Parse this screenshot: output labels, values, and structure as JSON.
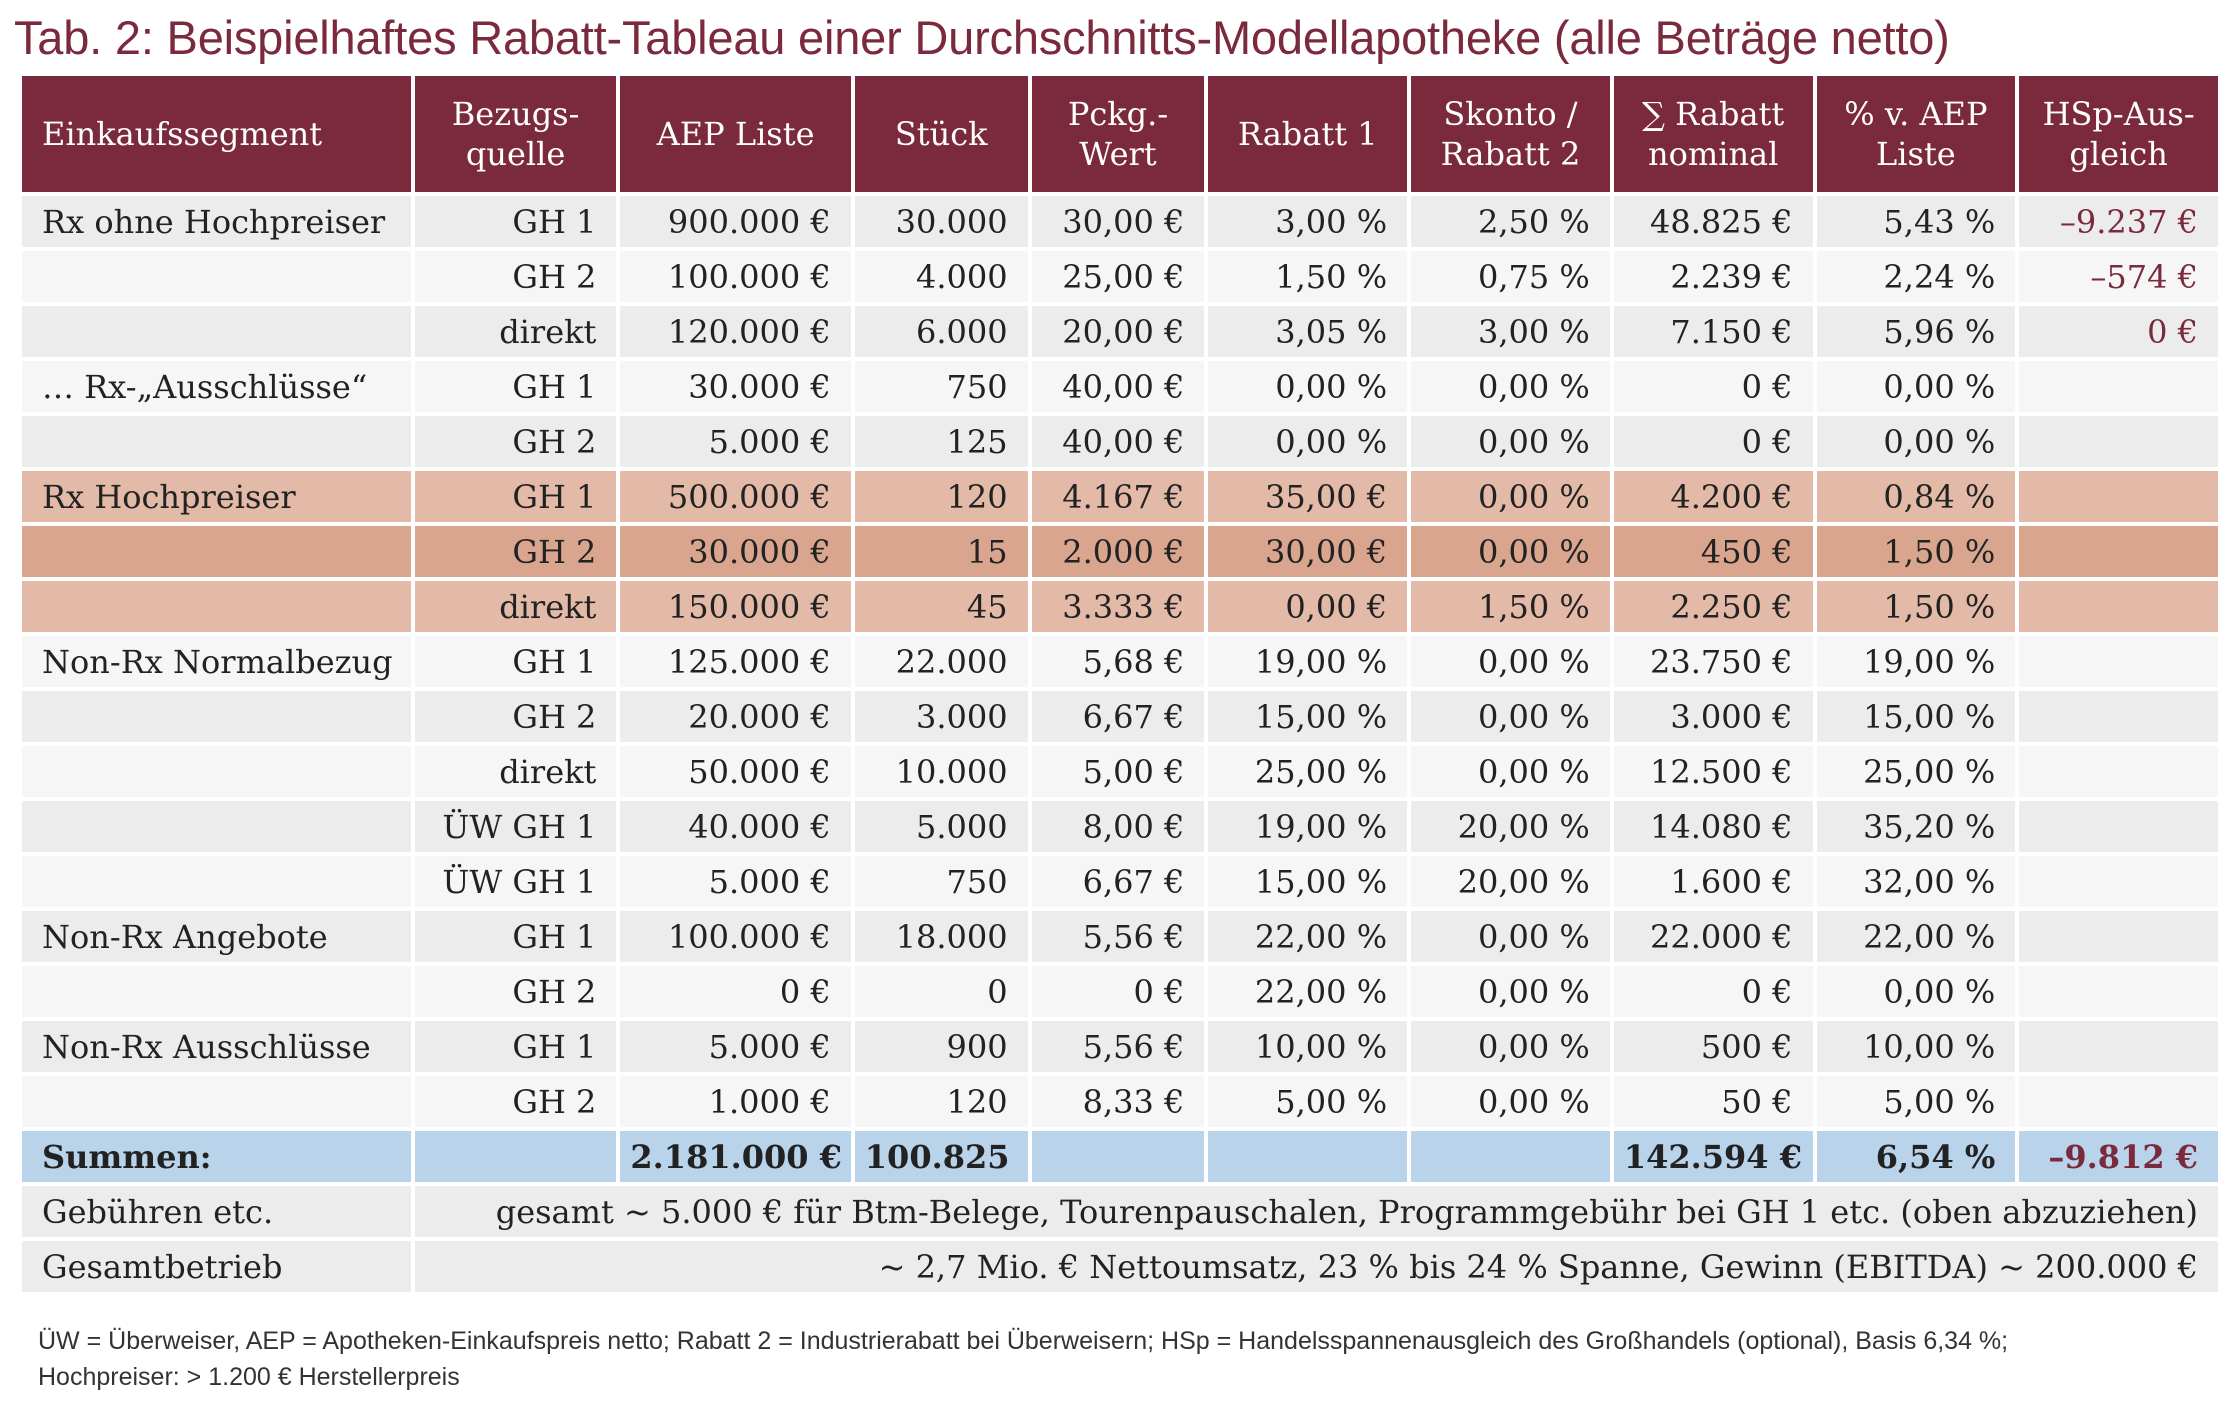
{
  "title": "Tab. 2: Beispielhaftes Rabatt-Tableau einer Durchschnitts-Modellapotheke (alle Beträge netto)",
  "columns": [
    [
      "Einkaufssegment"
    ],
    [
      "Bezugs-",
      "quelle"
    ],
    [
      "AEP Liste"
    ],
    [
      "Stück"
    ],
    [
      "Pckg.-",
      "Wert"
    ],
    [
      "Rabatt 1"
    ],
    [
      "Skonto /",
      "Rabatt 2"
    ],
    [
      "∑ Rabatt",
      "nominal"
    ],
    [
      "% v. AEP",
      "Liste"
    ],
    [
      "HSp-Aus-",
      "gleich"
    ]
  ],
  "rows": [
    {
      "style": "c1",
      "cells": [
        "Rx ohne Hochpreiser",
        "GH 1",
        "900.000 €",
        "30.000",
        "30,00 €",
        "3,00 %",
        "2,50 %",
        "48.825 €",
        "5,43 %",
        "–9.237 €"
      ]
    },
    {
      "style": "c2",
      "cells": [
        "",
        "GH 2",
        "100.000 €",
        "4.000",
        "25,00 €",
        "1,50 %",
        "0,75 %",
        "2.239 €",
        "2,24 %",
        "–574 €"
      ]
    },
    {
      "style": "c1",
      "cells": [
        "",
        "direkt",
        "120.000 €",
        "6.000",
        "20,00 €",
        "3,05 %",
        "3,00 %",
        "7.150 €",
        "5,96 %",
        "0 €"
      ]
    },
    {
      "style": "c2",
      "cells": [
        "… Rx-„Ausschlüsse“",
        "GH 1",
        "30.000 €",
        "750",
        "40,00 €",
        "0,00 %",
        "0,00 %",
        "0 €",
        "0,00 %",
        ""
      ]
    },
    {
      "style": "c1",
      "cells": [
        "",
        "GH 2",
        "5.000 €",
        "125",
        "40,00 €",
        "0,00 %",
        "0,00 %",
        "0 €",
        "0,00 %",
        ""
      ]
    },
    {
      "style": "h1",
      "cells": [
        "Rx Hochpreiser",
        "GH 1",
        "500.000 €",
        "120",
        "4.167 €",
        "35,00 €",
        "0,00 %",
        "4.200 €",
        "0,84 %",
        ""
      ]
    },
    {
      "style": "h2",
      "cells": [
        "",
        "GH 2",
        "30.000 €",
        "15",
        "2.000 €",
        "30,00 €",
        "0,00 %",
        "450 €",
        "1,50 %",
        ""
      ]
    },
    {
      "style": "h1",
      "cells": [
        "",
        "direkt",
        "150.000 €",
        "45",
        "3.333 €",
        "0,00 €",
        "1,50 %",
        "2.250 €",
        "1,50 %",
        ""
      ]
    },
    {
      "style": "c2",
      "cells": [
        "Non-Rx Normalbezug",
        "GH 1",
        "125.000 €",
        "22.000",
        "5,68 €",
        "19,00 %",
        "0,00 %",
        "23.750 €",
        "19,00 %",
        ""
      ]
    },
    {
      "style": "c1",
      "cells": [
        "",
        "GH 2",
        "20.000 €",
        "3.000",
        "6,67 €",
        "15,00 %",
        "0,00 %",
        "3.000 €",
        "15,00 %",
        ""
      ]
    },
    {
      "style": "c2",
      "cells": [
        "",
        "direkt",
        "50.000 €",
        "10.000",
        "5,00 €",
        "25,00 %",
        "0,00 %",
        "12.500 €",
        "25,00 %",
        ""
      ]
    },
    {
      "style": "c1",
      "cells": [
        "",
        "ÜW GH 1",
        "40.000 €",
        "5.000",
        "8,00 €",
        "19,00 %",
        "20,00 %",
        "14.080 €",
        "35,20 %",
        ""
      ]
    },
    {
      "style": "c2",
      "cells": [
        "",
        "ÜW GH 1",
        "5.000 €",
        "750",
        "6,67 €",
        "15,00 %",
        "20,00 %",
        "1.600 €",
        "32,00 %",
        ""
      ]
    },
    {
      "style": "c1",
      "cells": [
        "Non-Rx Angebote",
        "GH 1",
        "100.000 €",
        "18.000",
        "5,56 €",
        "22,00 %",
        "0,00 %",
        "22.000 €",
        "22,00 %",
        ""
      ]
    },
    {
      "style": "c2",
      "cells": [
        "",
        "GH 2",
        "0 €",
        "0",
        "0 €",
        "22,00 %",
        "0,00 %",
        "0 €",
        "0,00 %",
        ""
      ]
    },
    {
      "style": "c1",
      "cells": [
        "Non-Rx Ausschlüsse",
        "GH 1",
        "5.000 €",
        "900",
        "5,56 €",
        "10,00 %",
        "0,00 %",
        "500 €",
        "10,00 %",
        ""
      ]
    },
    {
      "style": "c2",
      "cells": [
        "",
        "GH 2",
        "1.000 €",
        "120",
        "8,33 €",
        "5,00 %",
        "0,00 %",
        "50 €",
        "5,00 %",
        ""
      ]
    }
  ],
  "negative_cells": [
    "–9.237 €",
    "–574 €",
    "0 €",
    "–9.812 €"
  ],
  "sum_row": [
    "Summen:",
    "",
    "2.181.000 €",
    "100.825",
    "",
    "",
    "",
    "142.594 €",
    "6,54 %",
    "–9.812 €"
  ],
  "info_rows": [
    {
      "label": "Gebühren etc.",
      "text": "gesamt ~ 5.000 € für Btm-Belege, Tourenpauschalen, Programmgebühr bei GH 1 etc. (oben abzuziehen)"
    },
    {
      "label": "Gesamtbetrieb",
      "text": "~ 2,7 Mio. € Nettoumsatz, 23 % bis 24 % Spanne, Gewinn (EBITDA) ~ 200.000 €"
    }
  ],
  "footer_lines": [
    "ÜW = Überweiser, AEP = Apotheken-Einkaufspreis netto; Rabatt 2 = Industrierabatt bei Überweisern; HSp = Handelsspannenausgleich des Großhandels (optional), Basis 6,34 %;",
    "Hochpreiser: > 1.200 € Herstellerpreis"
  ]
}
